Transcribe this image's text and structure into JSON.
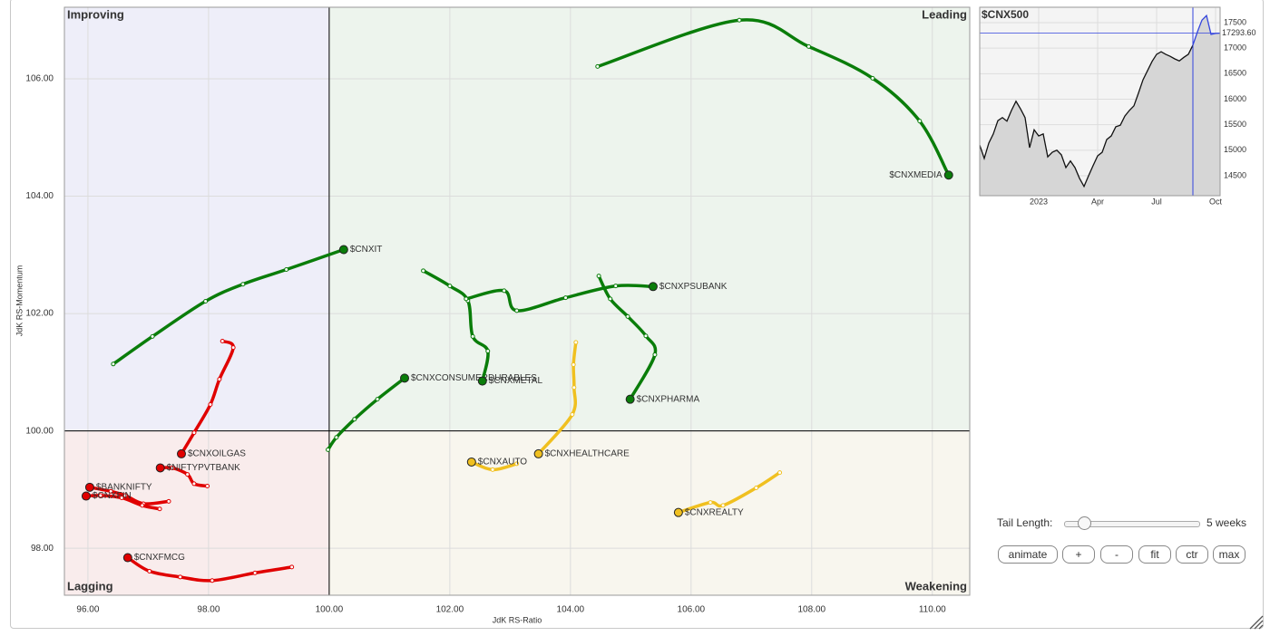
{
  "chart_data": [
    {
      "type": "rrg",
      "x_label": "JdK RS-Ratio",
      "y_label": "JdK RS-Momentum",
      "xlim": [
        95.61,
        110.62
      ],
      "ylim": [
        97.2,
        107.22
      ],
      "center": [
        100,
        100
      ],
      "grid": true,
      "xticks": [
        {
          "value": 96,
          "label": "96.00"
        },
        {
          "value": 98,
          "label": "98.00"
        },
        {
          "value": 100,
          "label": "100.00"
        },
        {
          "value": 102,
          "label": "102.00"
        },
        {
          "value": 104,
          "label": "104.00"
        },
        {
          "value": 106,
          "label": "106.00"
        },
        {
          "value": 108,
          "label": "108.00"
        },
        {
          "value": 110,
          "label": "110.00"
        }
      ],
      "yticks": [
        {
          "value": 98,
          "label": "98.00"
        },
        {
          "value": 100,
          "label": "100.00"
        },
        {
          "value": 102,
          "label": "102.00"
        },
        {
          "value": 104,
          "label": "104.00"
        },
        {
          "value": 106,
          "label": "106.00"
        }
      ],
      "quadrants": [
        {
          "label": "Improving",
          "color": "#8c8ce0",
          "fill": "#eeeef9"
        },
        {
          "label": "Leading",
          "color": "#5cb85c",
          "fill": "#edf4ed"
        },
        {
          "label": "Lagging",
          "color": "#f08a8a",
          "fill": "#f9ecec"
        },
        {
          "label": "Weakening",
          "color": "#e8b800",
          "fill": "#f8f6ee"
        }
      ],
      "series": [
        {
          "name": "$CNXMEDIA",
          "color": "#0a7d0a",
          "x": [
            104.45,
            106.8,
            107.95,
            109.01,
            109.79,
            110.27
          ],
          "y": [
            106.21,
            107.0,
            106.55,
            106.01,
            105.28,
            104.36
          ]
        },
        {
          "name": "$CNXIT",
          "color": "#0a7d0a",
          "x": [
            96.42,
            97.07,
            97.95,
            98.57,
            99.29,
            100.24
          ],
          "y": [
            101.14,
            101.61,
            102.21,
            102.5,
            102.75,
            103.09
          ]
        },
        {
          "name": "$CNXCONSUMERDURABLES",
          "color": "#0a7d0a",
          "x": [
            99.98,
            100.12,
            100.42,
            100.8,
            101.25
          ],
          "y": [
            99.68,
            99.89,
            100.2,
            100.54,
            100.9
          ]
        },
        {
          "name": "$CNXMETAL",
          "color": "#0a7d0a",
          "x": [
            101.56,
            102.0,
            102.3,
            102.38,
            102.63,
            102.54
          ],
          "y": [
            102.73,
            102.47,
            102.22,
            101.61,
            101.36,
            100.85
          ]
        },
        {
          "name": "$CNXPSUBANK",
          "color": "#0a7d0a",
          "x": [
            102.27,
            102.9,
            103.11,
            103.92,
            104.75,
            105.37
          ],
          "y": [
            102.25,
            102.39,
            102.05,
            102.27,
            102.47,
            102.46
          ]
        },
        {
          "name": "$CNXPHARMA",
          "color": "#0a7d0a",
          "x": [
            104.47,
            104.66,
            104.95,
            105.25,
            105.4,
            104.99
          ],
          "y": [
            102.64,
            102.25,
            101.95,
            101.62,
            101.3,
            100.54
          ]
        },
        {
          "name": "$CNXHEALTHCARE",
          "color": "#f0c020",
          "x": [
            104.09,
            104.05,
            104.06,
            104.03,
            103.47
          ],
          "y": [
            101.51,
            101.13,
            100.74,
            100.28,
            99.61
          ]
        },
        {
          "name": "$CNXAUTO",
          "color": "#f0c020",
          "x": [
            103.11,
            102.71,
            102.36
          ],
          "y": [
            99.44,
            99.34,
            99.47
          ]
        },
        {
          "name": "$CNXREALTY",
          "color": "#f0c020",
          "x": [
            107.47,
            107.08,
            106.53,
            106.32,
            105.79
          ],
          "y": [
            99.29,
            99.03,
            98.73,
            98.78,
            98.61
          ]
        },
        {
          "name": "$CNXOILGAS",
          "color": "#e00000",
          "x": [
            98.23,
            98.41,
            98.18,
            98.03,
            97.76,
            97.55
          ],
          "y": [
            101.53,
            101.42,
            100.88,
            100.45,
            99.97,
            99.61
          ]
        },
        {
          "name": "$NIFTYPVTBANK",
          "color": "#e00000",
          "x": [
            97.98,
            97.76,
            97.65,
            97.4,
            97.2
          ],
          "y": [
            99.06,
            99.1,
            99.26,
            99.37,
            99.37
          ]
        },
        {
          "name": "$BANKNIFTY",
          "color": "#e00000",
          "x": [
            97.34,
            96.92,
            96.62,
            96.38,
            96.03
          ],
          "y": [
            98.8,
            98.76,
            98.9,
            98.97,
            99.04
          ]
        },
        {
          "name": "$CNXFIN",
          "color": "#e00000",
          "x": [
            97.19,
            96.9,
            96.56,
            96.21,
            95.97
          ],
          "y": [
            98.67,
            98.73,
            98.86,
            98.9,
            98.89
          ]
        },
        {
          "name": "$CNXFMCG",
          "color": "#e00000",
          "x": [
            99.38,
            98.77,
            98.06,
            97.53,
            97.02,
            96.66
          ],
          "y": [
            97.68,
            97.58,
            97.45,
            97.51,
            97.61,
            97.84
          ]
        }
      ]
    },
    {
      "type": "line",
      "title": "$CNX500",
      "color": "#111111",
      "highlight_color": "#3344dd",
      "highlight_start": 47,
      "xlim": [
        0,
        53
      ],
      "ylim": [
        14109,
        17802
      ],
      "xticks": [
        {
          "value": 13,
          "label": "2023"
        },
        {
          "value": 26,
          "label": "Apr"
        },
        {
          "value": 39,
          "label": "Jul"
        },
        {
          "value": 52,
          "label": "Oct"
        }
      ],
      "yticks": [
        14500,
        15000,
        15500,
        16000,
        16500,
        17000,
        17500
      ],
      "current": {
        "value": 17293.6,
        "label": "17293.60"
      },
      "values": [
        15100,
        14840,
        15140,
        15320,
        15580,
        15640,
        15570,
        15780,
        15960,
        15810,
        15640,
        15050,
        15400,
        15280,
        15320,
        14870,
        14960,
        15000,
        14910,
        14660,
        14790,
        14660,
        14450,
        14290,
        14500,
        14700,
        14890,
        14960,
        15210,
        15280,
        15460,
        15490,
        15670,
        15780,
        15870,
        16120,
        16380,
        16560,
        16740,
        16880,
        16930,
        16880,
        16840,
        16790,
        16750,
        16820,
        16880,
        17060,
        17320,
        17550,
        17640,
        17270,
        17290,
        17293.6
      ]
    }
  ],
  "controls": {
    "tail_label": "Tail Length:",
    "tail_value": "5 weeks",
    "buttons": [
      "animate",
      "+",
      "-",
      "fit",
      "ctr",
      "max"
    ]
  }
}
